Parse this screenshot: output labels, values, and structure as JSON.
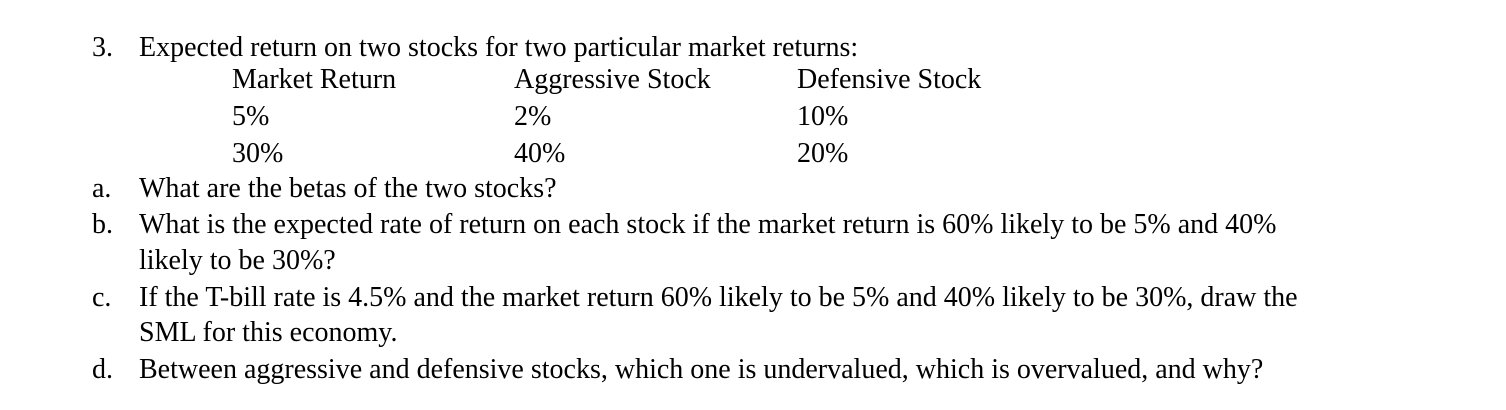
{
  "question": {
    "number": "3.",
    "title": "Expected return on two stocks for two particular market returns:"
  },
  "table": {
    "headers": [
      "Market Return",
      "Aggressive Stock",
      "Defensive Stock"
    ],
    "rows": [
      [
        "5%",
        "2%",
        "10%"
      ],
      [
        "30%",
        "40%",
        "20%"
      ]
    ]
  },
  "parts": [
    {
      "label": "a.",
      "lines": [
        "What are the betas of the two stocks?"
      ]
    },
    {
      "label": "b.",
      "lines": [
        "What is the expected rate of return on each stock if the market return is 60% likely to be 5% and 40%",
        "likely to be 30%?"
      ]
    },
    {
      "label": "c.",
      "lines": [
        "If the T-bill rate is 4.5% and the market return 60% likely to be 5% and 40% likely to be 30%, draw the",
        "SML for this economy."
      ]
    },
    {
      "label": "d.",
      "lines": [
        "Between aggressive and defensive stocks, which one is undervalued, which is overvalued, and why?"
      ]
    }
  ]
}
